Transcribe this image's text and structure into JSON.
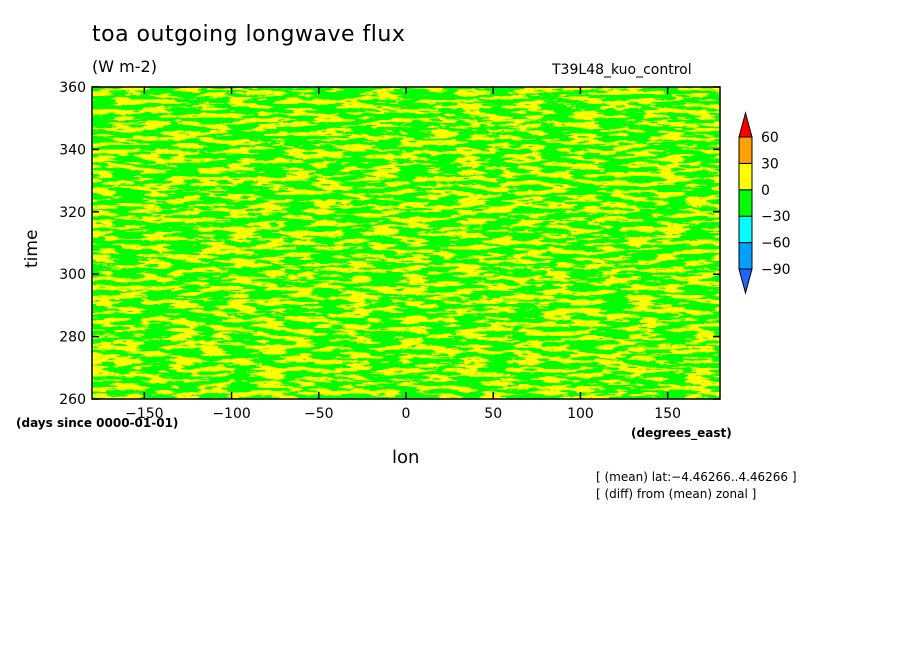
{
  "chart_data": {
    "type": "heatmap",
    "title": "toa outgoing longwave flux",
    "units": "(W m-2)",
    "run_name": "T39L48_kuo_control",
    "ylabel": "time",
    "y_units": "(days since 0000-01-01)",
    "xlabel": "lon",
    "x_units": "(degrees_east)",
    "xlim": [
      -180,
      180
    ],
    "ylim": [
      260,
      360
    ],
    "x_ticks": [
      -150,
      -100,
      -50,
      0,
      50,
      100,
      150
    ],
    "y_ticks": [
      260,
      280,
      300,
      320,
      340,
      360
    ],
    "x_tick_labels": [
      "−150",
      "−100",
      "−50",
      "0",
      "50",
      "100",
      "150"
    ],
    "y_tick_labels": [
      "260",
      "280",
      "300",
      "320",
      "340",
      "360"
    ],
    "colorbar": {
      "levels": [
        -90,
        -60,
        -30,
        0,
        30,
        60
      ],
      "level_labels": [
        "−90",
        "−60",
        "−30",
        "0",
        "30",
        "60"
      ],
      "colors": [
        "#1e64ff",
        "#00a0ff",
        "#00ffff",
        "#00ff00",
        "#ffff00",
        "#ffa000",
        "#ff0000"
      ],
      "extend": "both"
    },
    "notes": [
      "[ (mean) lat:−4.46266..4.46266 ]",
      "[ (diff) from (mean) zonal ]"
    ]
  }
}
